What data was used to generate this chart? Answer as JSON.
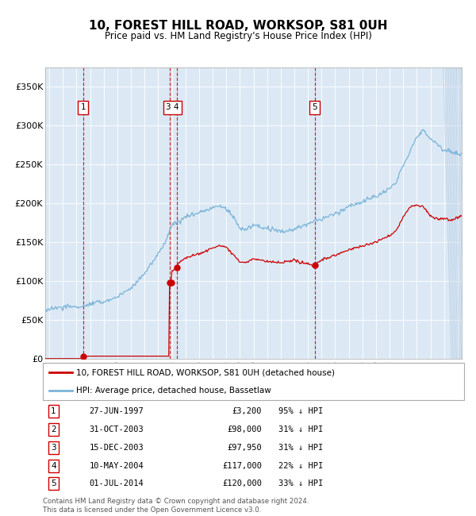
{
  "title": "10, FOREST HILL ROAD, WORKSOP, S81 0UH",
  "subtitle": "Price paid vs. HM Land Registry's House Price Index (HPI)",
  "ylim": [
    0,
    375000
  ],
  "yticks": [
    0,
    50000,
    100000,
    150000,
    200000,
    250000,
    300000,
    350000
  ],
  "ytick_labels": [
    "£0",
    "£50K",
    "£100K",
    "£150K",
    "£200K",
    "£250K",
    "£300K",
    "£350K"
  ],
  "xlim_start": 1994.7,
  "xlim_end": 2025.3,
  "bg_color": "#dce9f5",
  "hpi_color": "#7ab4d8",
  "price_color": "#cc0000",
  "transactions": [
    {
      "num": 1,
      "date_x": 1997.49,
      "price": 3200,
      "label": "27-JUN-1997",
      "price_str": "£3,200",
      "pct": "95% ↓ HPI"
    },
    {
      "num": 2,
      "date_x": 2003.83,
      "price": 98000,
      "label": "31-OCT-2003",
      "price_str": "£98,000",
      "pct": "31% ↓ HPI"
    },
    {
      "num": 3,
      "date_x": 2003.96,
      "price": 97950,
      "label": "15-DEC-2003",
      "price_str": "£97,950",
      "pct": "31% ↓ HPI"
    },
    {
      "num": 4,
      "date_x": 2004.36,
      "price": 117000,
      "label": "10-MAY-2004",
      "price_str": "£117,000",
      "pct": "22% ↓ HPI"
    },
    {
      "num": 5,
      "date_x": 2014.5,
      "price": 120000,
      "label": "01-JUL-2014",
      "price_str": "£120,000",
      "pct": "33% ↓ HPI"
    }
  ],
  "vlines": [
    1997.49,
    2003.83,
    2004.36,
    2014.5
  ],
  "box_labels": [
    {
      "label": "1",
      "x": 1997.49
    },
    {
      "label": "3 4",
      "x": 2004.05
    },
    {
      "label": "5",
      "x": 2014.5
    }
  ],
  "legend_line1": "10, FOREST HILL ROAD, WORKSOP, S81 0UH (detached house)",
  "legend_line2": "HPI: Average price, detached house, Bassetlaw",
  "footer": "Contains HM Land Registry data © Crown copyright and database right 2024.\nThis data is licensed under the Open Government Licence v3.0."
}
